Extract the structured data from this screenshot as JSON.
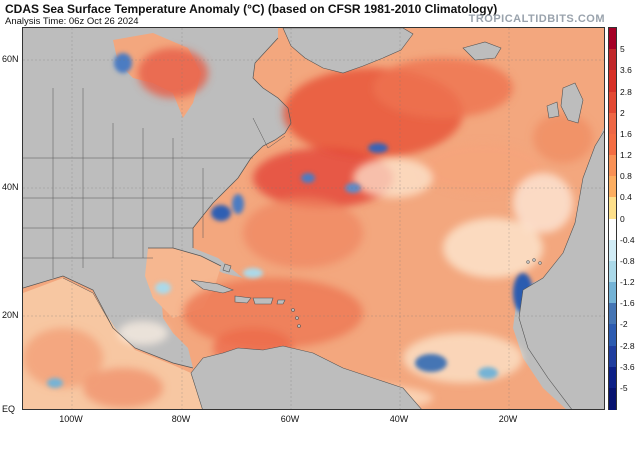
{
  "header": {
    "title": "CDAS Sea Surface Temperature Anomaly (°C) (based on CFSR 1981-2010 Climatology)",
    "subtitle": "Analysis Time: 06z Oct 26 2024",
    "brand": "TROPICALTIDBITS.COM"
  },
  "map": {
    "lat_labels": [
      "60N",
      "40N",
      "20N",
      "EQ"
    ],
    "lon_labels": [
      "100W",
      "80W",
      "60W",
      "40W",
      "20W"
    ],
    "colors": {
      "land": "#bdbdbd",
      "border": "#4a4a4a",
      "ocean_base": "#f4a173"
    }
  },
  "colorbar": {
    "labels": [
      "5",
      "3.6",
      "2.8",
      "2",
      "1.6",
      "1.2",
      "0.8",
      "0.4",
      "0",
      "-0.4",
      "-0.8",
      "-1.2",
      "-1.6",
      "-2",
      "-2.8",
      "-3.6",
      "-5"
    ],
    "colors": [
      "#a50026",
      "#c0272a",
      "#d73027",
      "#e34933",
      "#ee6745",
      "#f46d43",
      "#f99156",
      "#fdae61",
      "#fee08b",
      "#ffffff",
      "#d1ecf6",
      "#abd9e9",
      "#74b3d6",
      "#4575b4",
      "#2c5bb0",
      "#1f3d9e",
      "#0c1f86",
      "#06126f"
    ]
  }
}
